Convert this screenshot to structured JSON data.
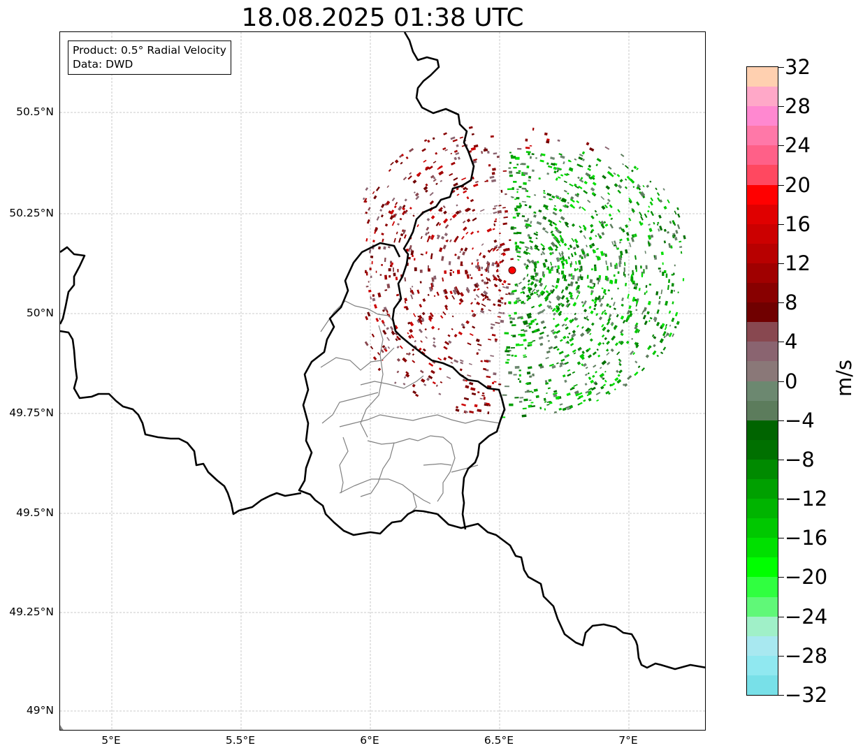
{
  "title": "18.08.2025 01:38 UTC",
  "info": {
    "product": "Product: 0.5° Radial Velocity",
    "source": "Data: DWD"
  },
  "lat_labels": [
    "50.5°N",
    "50.25°N",
    "50°N",
    "49.75°N",
    "49.5°N",
    "49.25°N",
    "49°N"
  ],
  "lon_labels": [
    "5°E",
    "5.5°E",
    "6°E",
    "6.5°E",
    "7°E"
  ],
  "map": {
    "lon_range": [
      4.8,
      7.3
    ],
    "lat_range": [
      48.95,
      50.7
    ],
    "radar_site": {
      "lon": 6.55,
      "lat": 50.11
    }
  },
  "colorbar": {
    "unit": "m/s",
    "ticks": [
      "32",
      "28",
      "24",
      "20",
      "16",
      "12",
      "8",
      "4",
      "0",
      "−4",
      "−8",
      "−12",
      "−16",
      "−20",
      "−24",
      "−28",
      "−32"
    ],
    "colors": [
      "#ffd0b0",
      "#ffa8c8",
      "#ff88d0",
      "#ff78a8",
      "#ff6088",
      "#ff4860",
      "#ff0000",
      "#e00000",
      "#cc0000",
      "#b80000",
      "#a00000",
      "#880000",
      "#700000",
      "#884850",
      "#8a6470",
      "#8a7878",
      "#6c8870",
      "#5c7c5c",
      "#006400",
      "#007000",
      "#008a00",
      "#00a000",
      "#00b400",
      "#00c800",
      "#00e000",
      "#00ff00",
      "#30ff40",
      "#60f878",
      "#a0f0c8",
      "#a8e8f0",
      "#90e8f0",
      "#78e0e8"
    ],
    "range": [
      -32,
      32
    ]
  }
}
